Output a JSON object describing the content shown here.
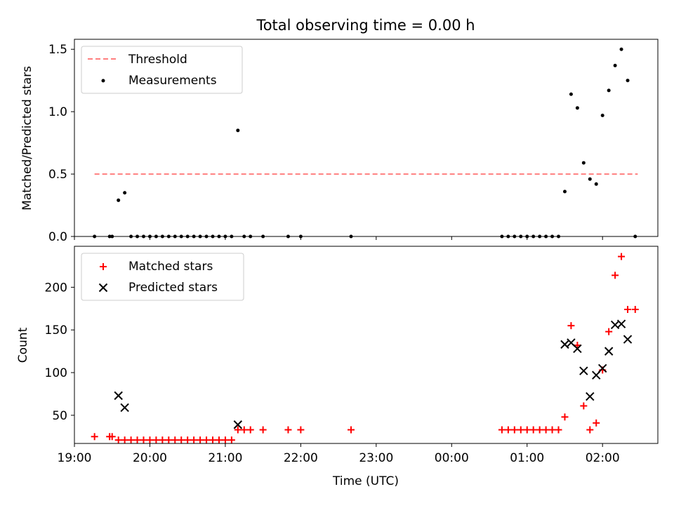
{
  "title": "Total observing time = 0.00 h",
  "colors": {
    "threshold": "#ff7f7f",
    "measurements": "#000000",
    "matched": "#ff0000",
    "predicted": "#000000"
  },
  "chart_data": [
    {
      "type": "scatter",
      "ylabel": "Matched/Predicted stars",
      "xlabel": "",
      "xlim": [
        "19:00",
        "02:44"
      ],
      "ylim": [
        0,
        1.58
      ],
      "yticks": [
        "0.0",
        "0.5",
        "1.0",
        "1.5"
      ],
      "grid": false,
      "legend_position": "top-left",
      "threshold": {
        "name": "Threshold",
        "value": 0.5,
        "x_range": [
          "19:16",
          "02:28"
        ]
      },
      "series": [
        {
          "name": "Measurements",
          "points": [
            [
              "19:16",
              0
            ],
            [
              "19:28",
              0
            ],
            [
              "19:30",
              0
            ],
            [
              "19:35",
              0.29
            ],
            [
              "19:40",
              0.35
            ],
            [
              "19:45",
              0
            ],
            [
              "19:50",
              0
            ],
            [
              "19:55",
              0
            ],
            [
              "20:00",
              0
            ],
            [
              "20:05",
              0
            ],
            [
              "20:10",
              0
            ],
            [
              "20:15",
              0
            ],
            [
              "20:20",
              0
            ],
            [
              "20:25",
              0
            ],
            [
              "20:30",
              0
            ],
            [
              "20:35",
              0
            ],
            [
              "20:40",
              0
            ],
            [
              "20:45",
              0
            ],
            [
              "20:50",
              0
            ],
            [
              "20:55",
              0
            ],
            [
              "21:00",
              0
            ],
            [
              "21:05",
              0
            ],
            [
              "21:10",
              0.85
            ],
            [
              "21:15",
              0
            ],
            [
              "21:20",
              0
            ],
            [
              "21:30",
              0
            ],
            [
              "21:50",
              0
            ],
            [
              "22:00",
              0
            ],
            [
              "22:40",
              0
            ],
            [
              "00:40",
              0
            ],
            [
              "00:45",
              0
            ],
            [
              "00:50",
              0
            ],
            [
              "00:55",
              0
            ],
            [
              "01:00",
              0
            ],
            [
              "01:05",
              0
            ],
            [
              "01:10",
              0
            ],
            [
              "01:15",
              0
            ],
            [
              "01:20",
              0
            ],
            [
              "01:25",
              0
            ],
            [
              "01:30",
              0.36
            ],
            [
              "01:35",
              1.14
            ],
            [
              "01:40",
              1.03
            ],
            [
              "01:45",
              0.59
            ],
            [
              "01:50",
              0.46
            ],
            [
              "01:55",
              0.42
            ],
            [
              "02:00",
              0.97
            ],
            [
              "02:05",
              1.17
            ],
            [
              "02:10",
              1.37
            ],
            [
              "02:15",
              1.5
            ],
            [
              "02:20",
              1.25
            ],
            [
              "02:26",
              0
            ]
          ]
        }
      ]
    },
    {
      "type": "scatter",
      "ylabel": "Count",
      "xlabel": "Time (UTC)",
      "xlim": [
        "19:00",
        "02:44"
      ],
      "ylim": [
        17,
        248
      ],
      "yticks": [
        "50",
        "100",
        "150",
        "200"
      ],
      "xticks": [
        "19:00",
        "20:00",
        "21:00",
        "22:00",
        "23:00",
        "00:00",
        "01:00",
        "02:00"
      ],
      "grid": false,
      "legend_position": "top-left",
      "series": [
        {
          "name": "Matched stars",
          "marker": "plus",
          "points": [
            [
              "19:16",
              25
            ],
            [
              "19:28",
              25
            ],
            [
              "19:30",
              25
            ],
            [
              "19:35",
              21
            ],
            [
              "19:40",
              21
            ],
            [
              "19:45",
              21
            ],
            [
              "19:50",
              21
            ],
            [
              "19:55",
              21
            ],
            [
              "20:00",
              21
            ],
            [
              "20:05",
              21
            ],
            [
              "20:10",
              21
            ],
            [
              "20:15",
              21
            ],
            [
              "20:20",
              21
            ],
            [
              "20:25",
              21
            ],
            [
              "20:30",
              21
            ],
            [
              "20:35",
              21
            ],
            [
              "20:40",
              21
            ],
            [
              "20:45",
              21
            ],
            [
              "20:50",
              21
            ],
            [
              "20:55",
              21
            ],
            [
              "21:00",
              21
            ],
            [
              "21:05",
              21
            ],
            [
              "21:10",
              33
            ],
            [
              "21:15",
              33
            ],
            [
              "21:20",
              33
            ],
            [
              "21:30",
              33
            ],
            [
              "21:50",
              33
            ],
            [
              "22:00",
              33
            ],
            [
              "22:40",
              33
            ],
            [
              "00:40",
              33
            ],
            [
              "00:45",
              33
            ],
            [
              "00:50",
              33
            ],
            [
              "00:55",
              33
            ],
            [
              "01:00",
              33
            ],
            [
              "01:05",
              33
            ],
            [
              "01:10",
              33
            ],
            [
              "01:15",
              33
            ],
            [
              "01:20",
              33
            ],
            [
              "01:25",
              33
            ],
            [
              "01:30",
              48
            ],
            [
              "01:35",
              155
            ],
            [
              "01:40",
              132
            ],
            [
              "01:45",
              61
            ],
            [
              "01:50",
              33
            ],
            [
              "01:55",
              41
            ],
            [
              "02:00",
              103
            ],
            [
              "02:05",
              148
            ],
            [
              "02:10",
              214
            ],
            [
              "02:15",
              236
            ],
            [
              "02:20",
              174
            ],
            [
              "02:26",
              174
            ]
          ]
        },
        {
          "name": "Predicted stars",
          "marker": "x",
          "points": [
            [
              "19:35",
              73
            ],
            [
              "19:40",
              59
            ],
            [
              "21:10",
              39
            ],
            [
              "01:30",
              133
            ],
            [
              "01:35",
              135
            ],
            [
              "01:40",
              128
            ],
            [
              "01:45",
              102
            ],
            [
              "01:50",
              72
            ],
            [
              "01:55",
              97
            ],
            [
              "02:00",
              105
            ],
            [
              "02:05",
              125
            ],
            [
              "02:10",
              156
            ],
            [
              "02:15",
              157
            ],
            [
              "02:20",
              139
            ]
          ]
        }
      ]
    }
  ]
}
